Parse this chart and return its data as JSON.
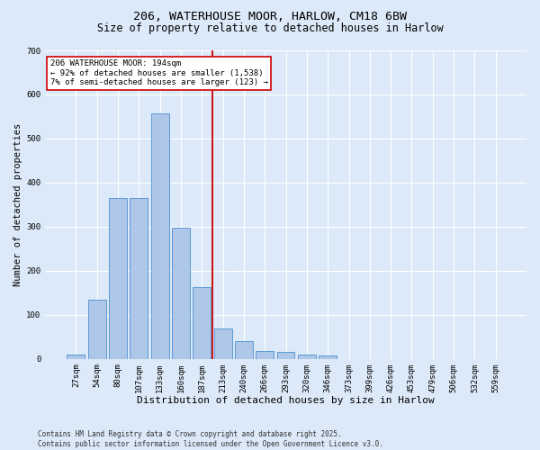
{
  "title1": "206, WATERHOUSE MOOR, HARLOW, CM18 6BW",
  "title2": "Size of property relative to detached houses in Harlow",
  "xlabel": "Distribution of detached houses by size in Harlow",
  "ylabel": "Number of detached properties",
  "bar_labels": [
    "27sqm",
    "54sqm",
    "80sqm",
    "107sqm",
    "133sqm",
    "160sqm",
    "187sqm",
    "213sqm",
    "240sqm",
    "266sqm",
    "293sqm",
    "320sqm",
    "346sqm",
    "373sqm",
    "399sqm",
    "426sqm",
    "453sqm",
    "479sqm",
    "506sqm",
    "532sqm",
    "559sqm"
  ],
  "bar_values": [
    10,
    135,
    365,
    365,
    558,
    298,
    163,
    68,
    40,
    18,
    15,
    10,
    7,
    0,
    0,
    0,
    0,
    0,
    0,
    0,
    0
  ],
  "bar_color": "#aec6e8",
  "bar_edge_color": "#5b9bd5",
  "vline_color": "#cc0000",
  "annotation_text": "206 WATERHOUSE MOOR: 194sqm\n← 92% of detached houses are smaller (1,538)\n7% of semi-detached houses are larger (123) →",
  "annotation_box_color": "#ffffff",
  "annotation_box_edge": "#cc0000",
  "ylim": [
    0,
    700
  ],
  "yticks": [
    0,
    100,
    200,
    300,
    400,
    500,
    600,
    700
  ],
  "bg_color": "#dce9f8",
  "grid_color": "#ffffff",
  "footer": "Contains HM Land Registry data © Crown copyright and database right 2025.\nContains public sector information licensed under the Open Government Licence v3.0.",
  "title1_fontsize": 9.5,
  "title2_fontsize": 8.5,
  "xlabel_fontsize": 8,
  "ylabel_fontsize": 7.5,
  "tick_fontsize": 6.5,
  "annot_fontsize": 6.5,
  "footer_fontsize": 5.5
}
